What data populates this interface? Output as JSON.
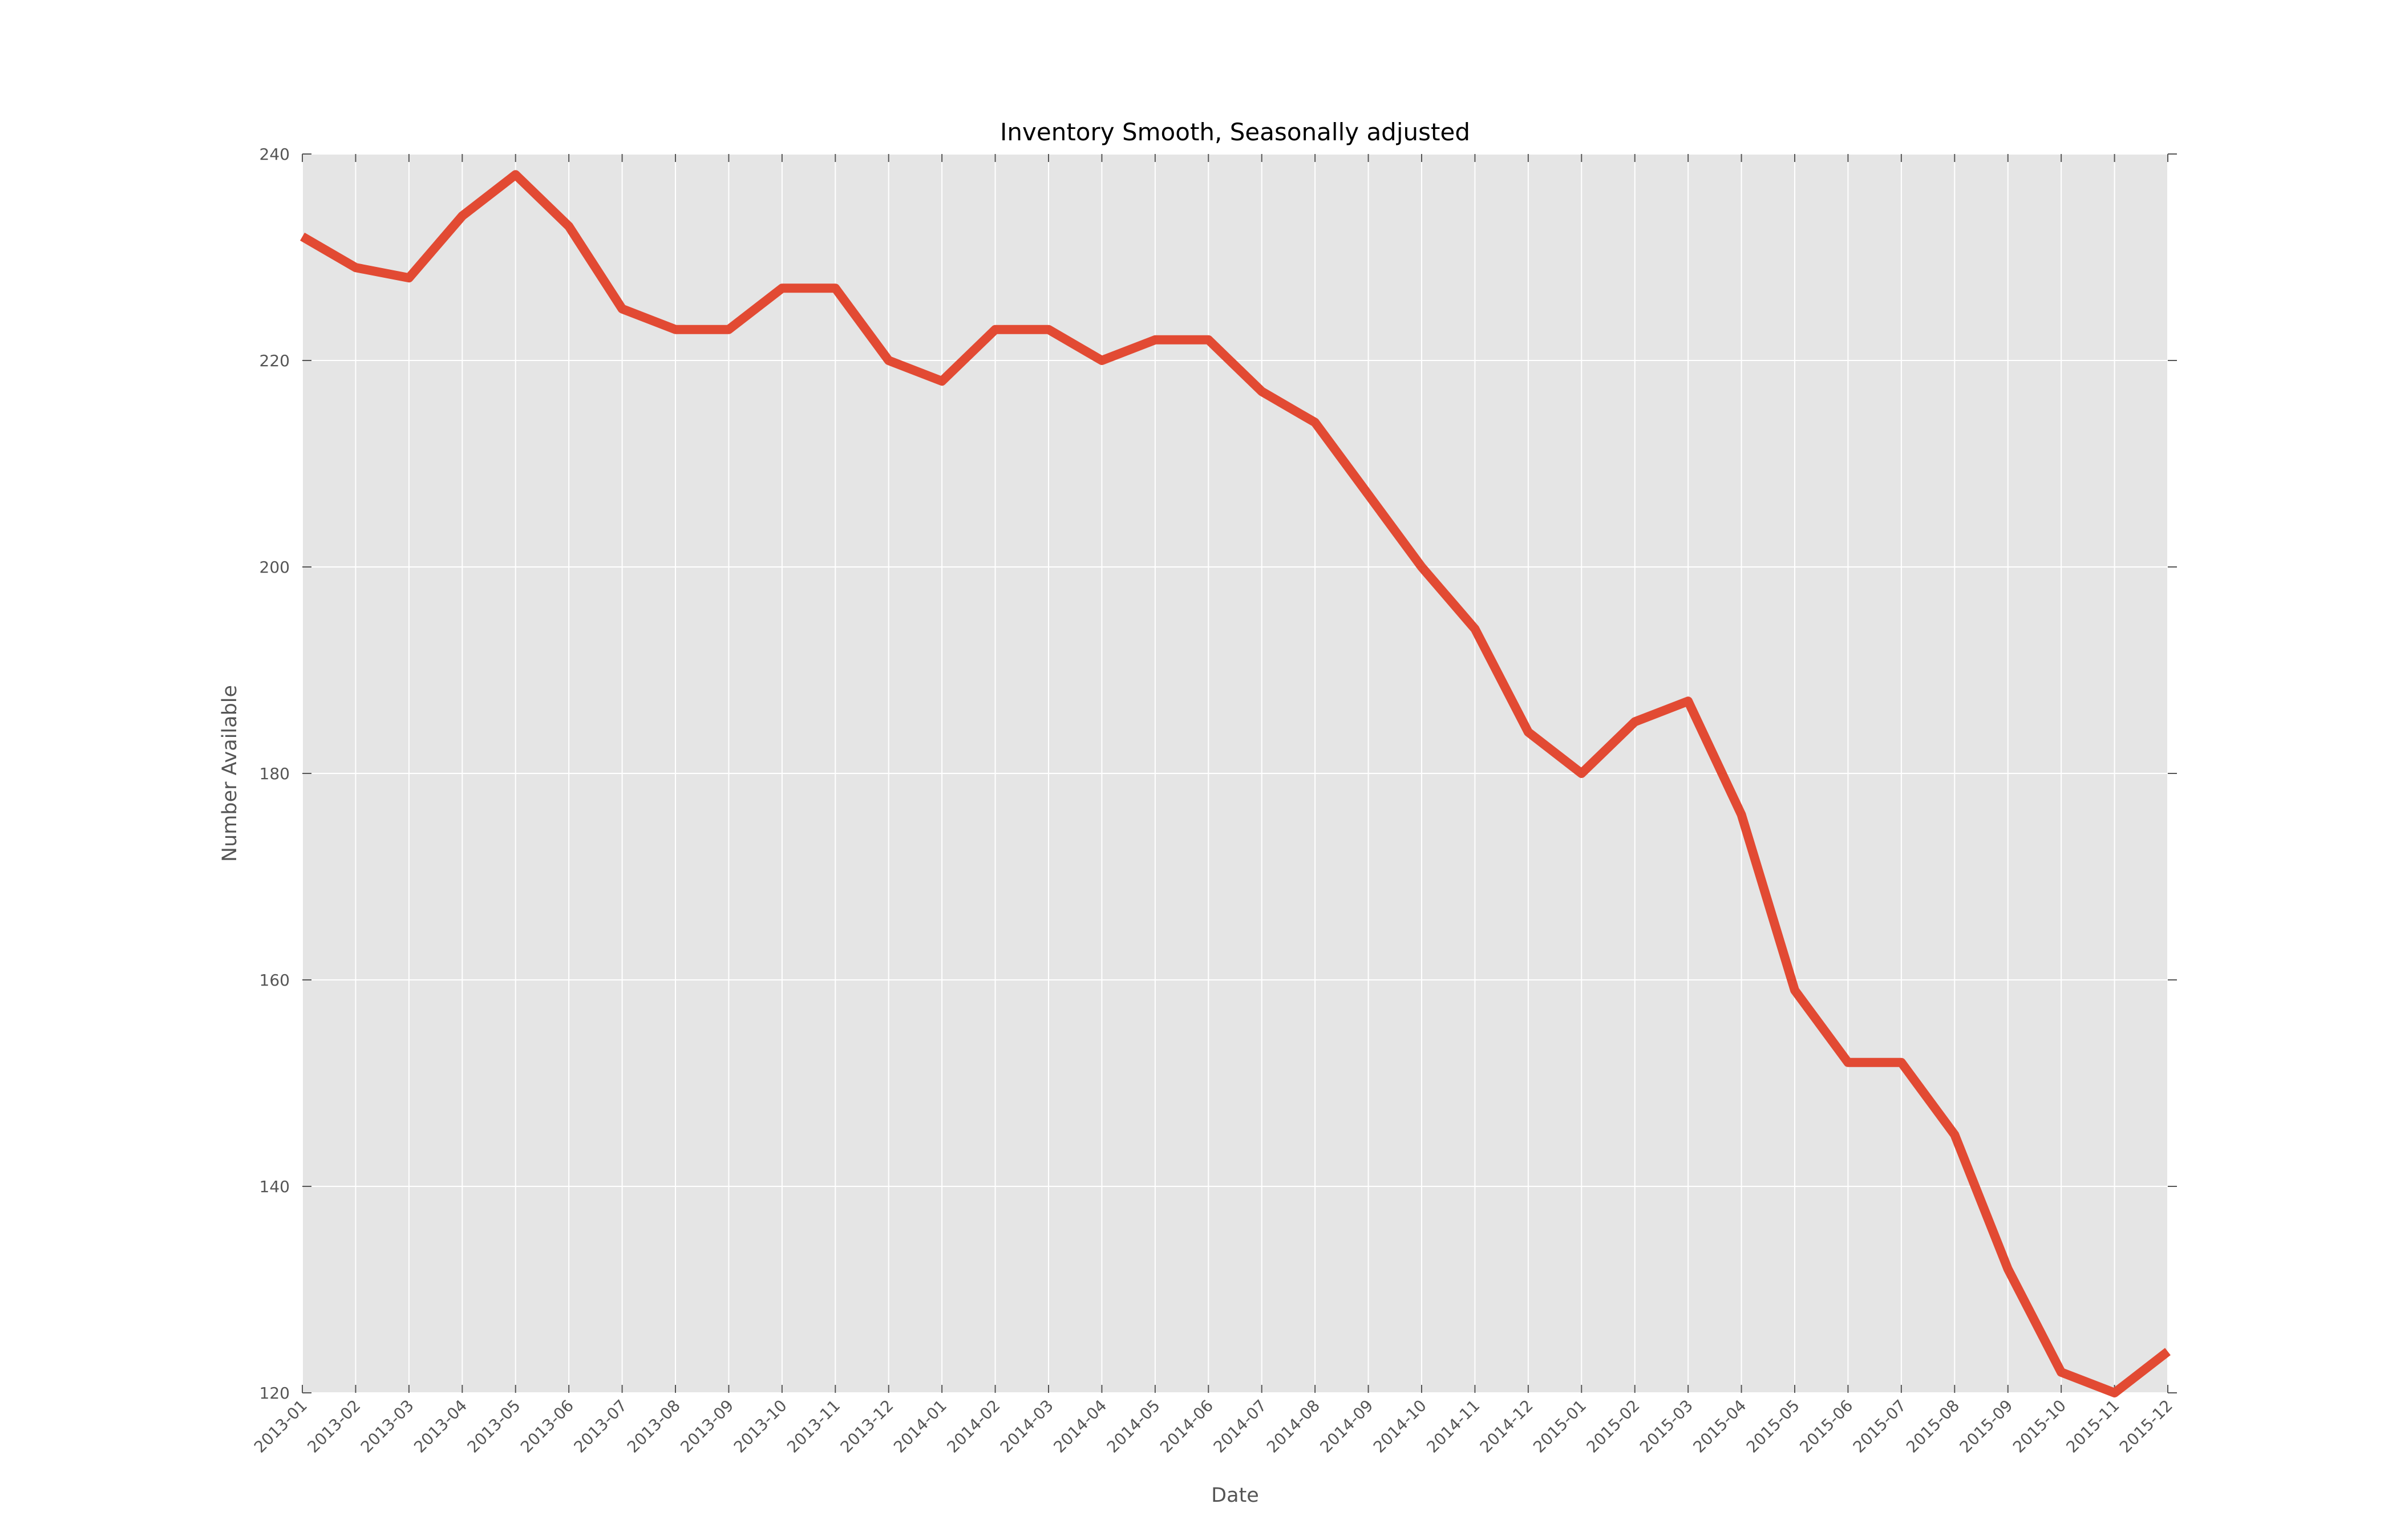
{
  "chart_data": {
    "type": "line",
    "title": "Inventory Smooth, Seasonally adjusted",
    "xlabel": "Date",
    "ylabel": "Number Available",
    "x": [
      "2013-01",
      "2013-02",
      "2013-03",
      "2013-04",
      "2013-05",
      "2013-06",
      "2013-07",
      "2013-08",
      "2013-09",
      "2013-10",
      "2013-11",
      "2013-12",
      "2014-01",
      "2014-02",
      "2014-03",
      "2014-04",
      "2014-05",
      "2014-06",
      "2014-07",
      "2014-08",
      "2014-09",
      "2014-10",
      "2014-11",
      "2014-12",
      "2015-01",
      "2015-02",
      "2015-03",
      "2015-04",
      "2015-05",
      "2015-06",
      "2015-07",
      "2015-08",
      "2015-09",
      "2015-10",
      "2015-11",
      "2015-12"
    ],
    "series": [
      {
        "values": [
          232,
          229,
          228,
          234,
          238,
          233,
          225,
          223,
          223,
          227,
          227,
          220,
          218,
          223,
          223,
          220,
          222,
          222,
          217,
          214,
          207,
          200,
          194,
          184,
          180,
          185,
          187,
          176,
          159,
          152,
          152,
          145,
          132,
          122,
          120,
          124
        ],
        "color": "#e24a33"
      }
    ],
    "ylim": [
      120,
      240
    ],
    "yticks": [
      120,
      140,
      160,
      180,
      200,
      220,
      240
    ],
    "grid": true,
    "background": "#e5e5e5",
    "grid_color": "#ffffff"
  }
}
